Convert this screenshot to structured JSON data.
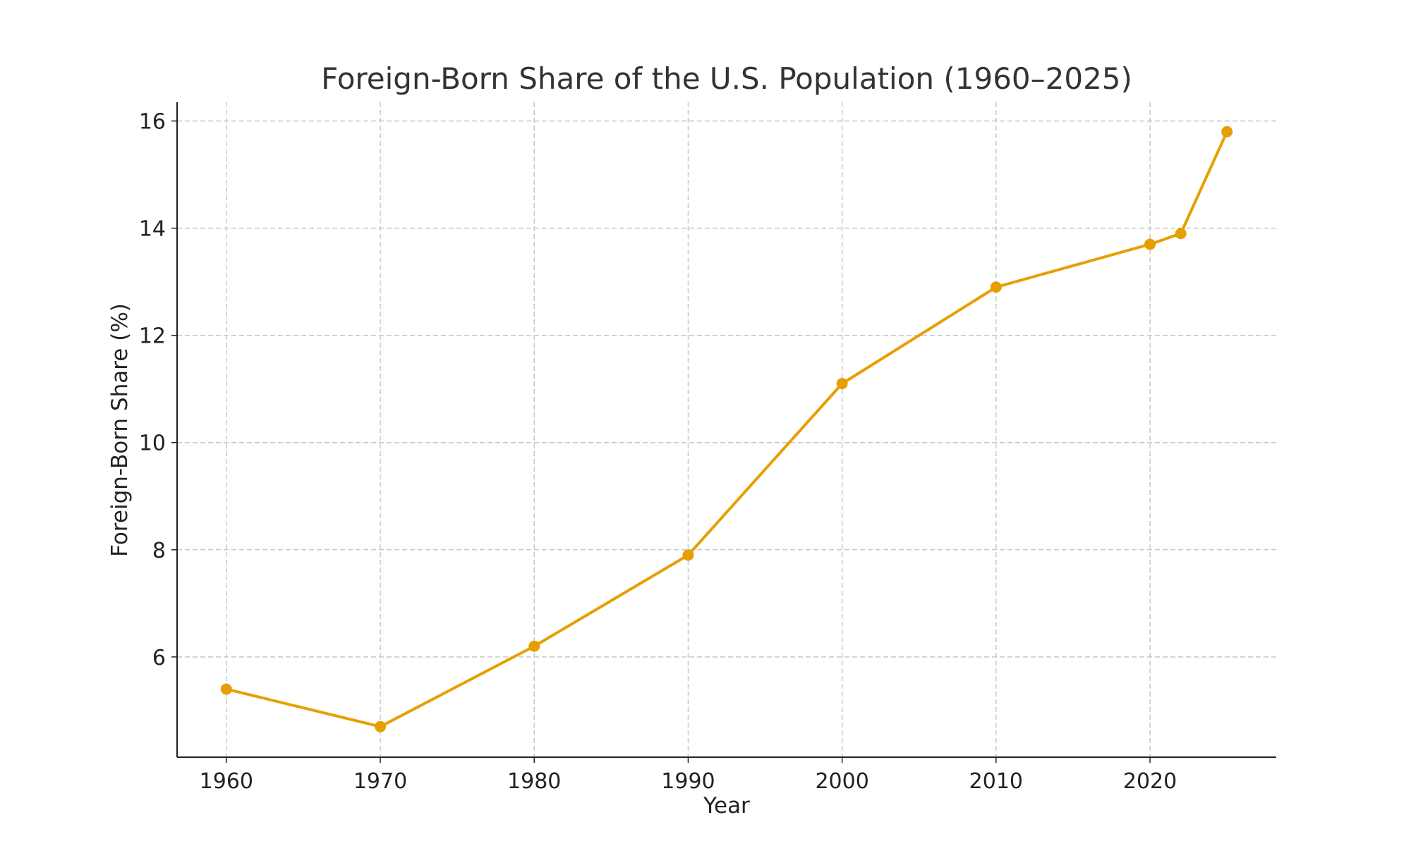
{
  "chart_data": {
    "type": "line",
    "title": "Foreign-Born Share of the U.S. Population (1960–2025)",
    "xlabel": "Year",
    "ylabel": "Foreign-Born Share (%)",
    "x": [
      1960,
      1970,
      1980,
      1990,
      2000,
      2010,
      2020,
      2022,
      2025
    ],
    "series": [
      {
        "name": "Foreign-Born Share (%)",
        "values": [
          5.4,
          4.7,
          6.2,
          7.9,
          11.1,
          12.9,
          13.7,
          13.9,
          15.8
        ],
        "color": "#E69F00"
      }
    ],
    "xlim": [
      1956.8,
      2028.2
    ],
    "ylim": [
      4.13,
      16.35
    ],
    "xticks": [
      "1960",
      "1970",
      "1980",
      "1990",
      "2000",
      "2010",
      "2020"
    ],
    "yticks": [
      "6",
      "8",
      "10",
      "12",
      "14",
      "16"
    ],
    "grid": true
  }
}
